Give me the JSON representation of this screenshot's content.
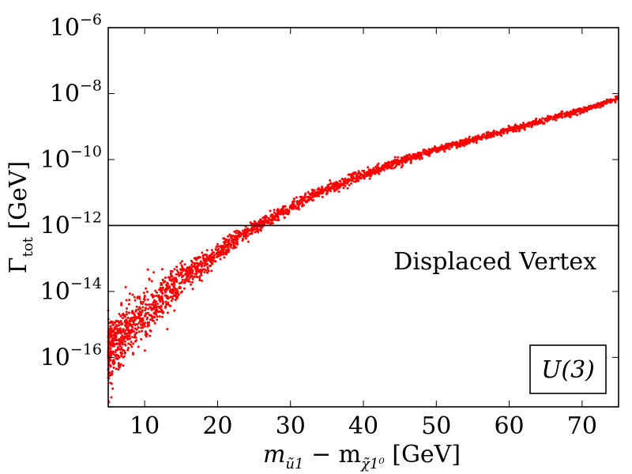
{
  "chart_data": {
    "type": "scatter",
    "title": "",
    "xlabel": "m_ũ1 − m_χ̃1⁰ [GeV]",
    "xlabel_parts": {
      "m": "m",
      "sub1": "ũ1",
      "minus": " − m",
      "sub2": "χ̃1⁰",
      "unit": " [GeV]"
    },
    "ylabel": "Γ_tot [GeV]",
    "ylabel_parts": {
      "gamma": "Γ",
      "sub": "tot",
      "unit": " [GeV]"
    },
    "xlim": [
      5,
      75
    ],
    "ylim_log10": [
      -17.5,
      -6
    ],
    "y_scale": "log",
    "x_ticks": [
      10,
      20,
      30,
      40,
      50,
      60,
      70
    ],
    "x_tick_labels": [
      "10",
      "20",
      "30",
      "40",
      "50",
      "60",
      "70"
    ],
    "y_ticks_log10": [
      -16,
      -14,
      -12,
      -10,
      -8,
      -6
    ],
    "y_tick_bases": [
      "10",
      "10",
      "10",
      "10",
      "10",
      "10"
    ],
    "y_tick_exponents": [
      "−16",
      "−14",
      "−12",
      "−10",
      "−8",
      "−6"
    ],
    "series": [
      {
        "name": "U(3) scan points",
        "color": "#ff0000",
        "marker": "dot",
        "n_points": 2600,
        "trend_log10_gamma": {
          "x": [
            5,
            6,
            8,
            10,
            12,
            14,
            16,
            18,
            20,
            22,
            24,
            26,
            28,
            30,
            32,
            35,
            38,
            40,
            45,
            50,
            55,
            60,
            65,
            70,
            75
          ],
          "y": [
            -15.8,
            -15.6,
            -15.1,
            -14.7,
            -14.3,
            -13.9,
            -13.5,
            -13.2,
            -12.85,
            -12.5,
            -12.2,
            -11.95,
            -11.7,
            -11.45,
            -11.2,
            -10.9,
            -10.65,
            -10.45,
            -10.05,
            -9.7,
            -9.4,
            -9.1,
            -8.8,
            -8.5,
            -8.15
          ]
        },
        "spread_log10": {
          "x": [
            5,
            8,
            10,
            12,
            15,
            20,
            25,
            30,
            40,
            50,
            75
          ],
          "sd": [
            0.45,
            0.45,
            0.42,
            0.35,
            0.25,
            0.14,
            0.1,
            0.08,
            0.07,
            0.05,
            0.04
          ]
        }
      }
    ],
    "reference_line": {
      "log10_y": -12,
      "color": "#000000"
    },
    "annotations": {
      "region_label": "Displaced Vertex",
      "model_label": "U(3)"
    }
  }
}
